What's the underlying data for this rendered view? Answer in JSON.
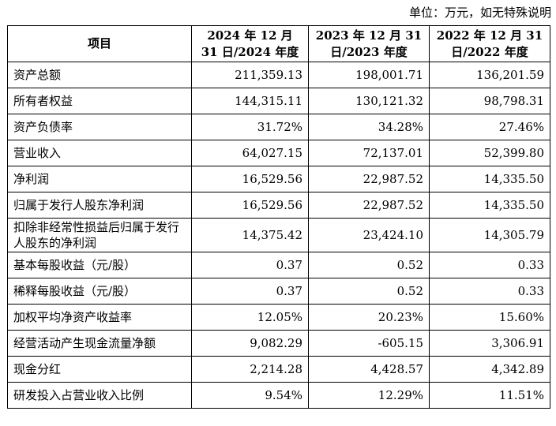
{
  "unit_note": "单位：万元，如无特殊说明",
  "headers": [
    "项目",
    "2024 年 12 月 31 日/2024 年度",
    "2023 年 12 月 31 日/2023 年度",
    "2022 年 12 月 31 日/2022 年度"
  ],
  "rows": [
    {
      "label": "资产总额",
      "v2024": "211,359.13",
      "v2023": "198,001.71",
      "v2022": "136,201.59"
    },
    {
      "label": "所有者权益",
      "v2024": "144,315.11",
      "v2023": "130,121.32",
      "v2022": "98,798.31"
    },
    {
      "label": "资产负债率",
      "v2024": "31.72%",
      "v2023": "34.28%",
      "v2022": "27.46%"
    },
    {
      "label": "营业收入",
      "v2024": "64,027.15",
      "v2023": "72,137.01",
      "v2022": "52,399.80"
    },
    {
      "label": "净利润",
      "v2024": "16,529.56",
      "v2023": "22,987.52",
      "v2022": "14,335.50"
    },
    {
      "label": "归属于发行人股东净利润",
      "v2024": "16,529.56",
      "v2023": "22,987.52",
      "v2022": "14,335.50"
    },
    {
      "label": "扣除非经常性损益后归属于发行人股东的净利润",
      "v2024": "14,375.42",
      "v2023": "23,424.10",
      "v2022": "14,305.79"
    },
    {
      "label": "基本每股收益（元/股）",
      "v2024": "0.37",
      "v2023": "0.52",
      "v2022": "0.33"
    },
    {
      "label": "稀释每股收益（元/股）",
      "v2024": "0.37",
      "v2023": "0.52",
      "v2022": "0.33"
    },
    {
      "label": "加权平均净资产收益率",
      "v2024": "12.05%",
      "v2023": "20.23%",
      "v2022": "15.60%"
    },
    {
      "label": "经营活动产生现金流量净额",
      "v2024": "9,082.29",
      "v2023": "-605.15",
      "v2022": "3,306.91"
    },
    {
      "label": "现金分红",
      "v2024": "2,214.28",
      "v2023": "4,428.57",
      "v2022": "4,342.89"
    },
    {
      "label": "研发投入占营业收入比例",
      "v2024": "9.54%",
      "v2023": "12.29%",
      "v2022": "11.51%"
    }
  ]
}
